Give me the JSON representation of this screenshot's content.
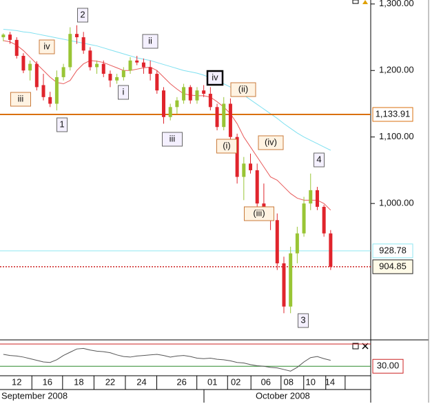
{
  "chart_data": {
    "type": "candlestick",
    "ylim": [
      798,
      1306
    ],
    "yticks": [
      {
        "value": 1300,
        "label": "1,300.00"
      },
      {
        "value": 1200,
        "label": "1,200.00"
      },
      {
        "value": 1100,
        "label": "1,100.00"
      },
      {
        "value": 1000,
        "label": "1,000.00"
      }
    ],
    "xlim": [
      -0.5,
      55
    ],
    "xticks": [
      {
        "value": 2,
        "label": "12"
      },
      {
        "value": 6.6,
        "label": "16"
      },
      {
        "value": 11.3,
        "label": "18"
      },
      {
        "value": 16,
        "label": "22"
      },
      {
        "value": 20.7,
        "label": "24"
      },
      {
        "value": 26.7,
        "label": "26"
      },
      {
        "value": 31.3,
        "label": "01"
      },
      {
        "value": 34.8,
        "label": "02"
      },
      {
        "value": 39.3,
        "label": "06"
      },
      {
        "value": 42.7,
        "label": "08"
      },
      {
        "value": 46,
        "label": "10"
      },
      {
        "value": 48.9,
        "label": "14"
      }
    ],
    "months": [
      "September 2008",
      "October 2008"
    ],
    "up_color": "#99c535",
    "down_color": "#e0242c",
    "open": [
      1250,
      1254,
      1246,
      1222,
      1200,
      1210,
      1178,
      1160,
      1150,
      1190,
      1205,
      1255,
      1250,
      1230,
      1205,
      1210,
      1195,
      1185,
      1190,
      1200,
      1215,
      1212,
      1205,
      1195,
      1170,
      1130,
      1145,
      1155,
      1175,
      1155,
      1170,
      1165,
      1145,
      1115,
      1150,
      1100,
      1040,
      1060,
      1050,
      1000,
      985,
      975,
      910,
      845,
      925,
      955,
      1000,
      1020,
      995,
      955
    ],
    "high": [
      1256,
      1258,
      1250,
      1226,
      1215,
      1214,
      1195,
      1168,
      1200,
      1210,
      1265,
      1268,
      1258,
      1235,
      1215,
      1215,
      1200,
      1195,
      1205,
      1220,
      1222,
      1218,
      1215,
      1200,
      1175,
      1150,
      1160,
      1180,
      1178,
      1175,
      1178,
      1175,
      1150,
      1160,
      1158,
      1105,
      1070,
      1075,
      1060,
      1030,
      995,
      985,
      920,
      935,
      965,
      1010,
      1045,
      1025,
      998,
      960
    ],
    "low": [
      1244,
      1240,
      1218,
      1196,
      1185,
      1170,
      1155,
      1145,
      1140,
      1185,
      1200,
      1240,
      1225,
      1200,
      1195,
      1190,
      1175,
      1180,
      1185,
      1195,
      1208,
      1195,
      1185,
      1165,
      1120,
      1125,
      1135,
      1150,
      1150,
      1150,
      1160,
      1140,
      1110,
      1110,
      1095,
      1030,
      1005,
      1045,
      990,
      975,
      960,
      900,
      835,
      835,
      910,
      950,
      990,
      990,
      950,
      900
    ],
    "close": [
      1254,
      1246,
      1222,
      1200,
      1210,
      1175,
      1160,
      1150,
      1190,
      1205,
      1255,
      1250,
      1230,
      1205,
      1210,
      1195,
      1185,
      1190,
      1200,
      1215,
      1212,
      1205,
      1195,
      1170,
      1130,
      1145,
      1155,
      1175,
      1155,
      1170,
      1165,
      1145,
      1115,
      1150,
      1100,
      1040,
      1060,
      1050,
      1000,
      985,
      975,
      910,
      845,
      925,
      955,
      1000,
      1020,
      995,
      955,
      904.85
    ],
    "series": [
      {
        "color": "#e85a5a",
        "values": [
          1245,
          1243,
          1238,
          1230,
          1220,
          1210,
          1200,
          1190,
          1182,
          1180,
          1185,
          1200,
          1210,
          1215,
          1214,
          1212,
          1208,
          1204,
          1200,
          1200,
          1202,
          1204,
          1205,
          1200,
          1190,
          1180,
          1172,
          1165,
          1163,
          1162,
          1162,
          1160,
          1153,
          1145,
          1135,
          1120,
          1100,
          1085,
          1070,
          1055,
          1040,
          1035,
          1025,
          1015,
          1008,
          1005,
          1005,
          1005,
          1000,
          990
        ]
      },
      {
        "color": "#7fe0f0",
        "values": [
          1262,
          1261,
          1260,
          1258,
          1257,
          1255,
          1253,
          1251,
          1249,
          1247,
          1245,
          1243,
          1241,
          1239,
          1237,
          1234,
          1231,
          1228,
          1225,
          1222,
          1219,
          1217,
          1215,
          1212,
          1209,
          1206,
          1203,
          1200,
          1198,
          1196,
          1193,
          1189,
          1185,
          1180,
          1175,
          1170,
          1163,
          1156,
          1149,
          1142,
          1135,
          1128,
          1120,
          1113,
          1106,
          1100,
          1095,
          1090,
          1085,
          1080
        ]
      }
    ],
    "levels": [
      {
        "value": 1133.91,
        "label": "1,133.91",
        "color": "#d9700f"
      },
      {
        "value": 928.78,
        "label": "928.78",
        "color": "#8fe6f2"
      },
      {
        "value": 904.85,
        "label": "904.85",
        "color": "#cc2020"
      }
    ],
    "annotations": [
      "iv",
      "2",
      "ii",
      "iii",
      "i",
      "iv",
      "(ii)",
      "1",
      "iii",
      "(i)",
      "(iv)",
      "4",
      "(iii)",
      "3"
    ],
    "indicator": {
      "ylim": [
        15,
        75
      ],
      "level": {
        "value": 30,
        "label": "30.00"
      },
      "color": "#555555",
      "values": [
        52,
        50,
        49,
        47,
        44,
        41,
        38,
        37,
        42,
        50,
        56,
        62,
        63,
        60,
        58,
        57,
        55,
        51,
        48,
        47,
        49,
        50,
        51,
        52,
        50,
        47,
        49,
        50,
        48,
        45,
        44,
        45,
        43,
        42,
        40,
        37,
        36,
        33,
        31,
        30,
        28,
        27,
        24,
        21,
        28,
        38,
        46,
        48,
        44,
        41
      ]
    }
  }
}
